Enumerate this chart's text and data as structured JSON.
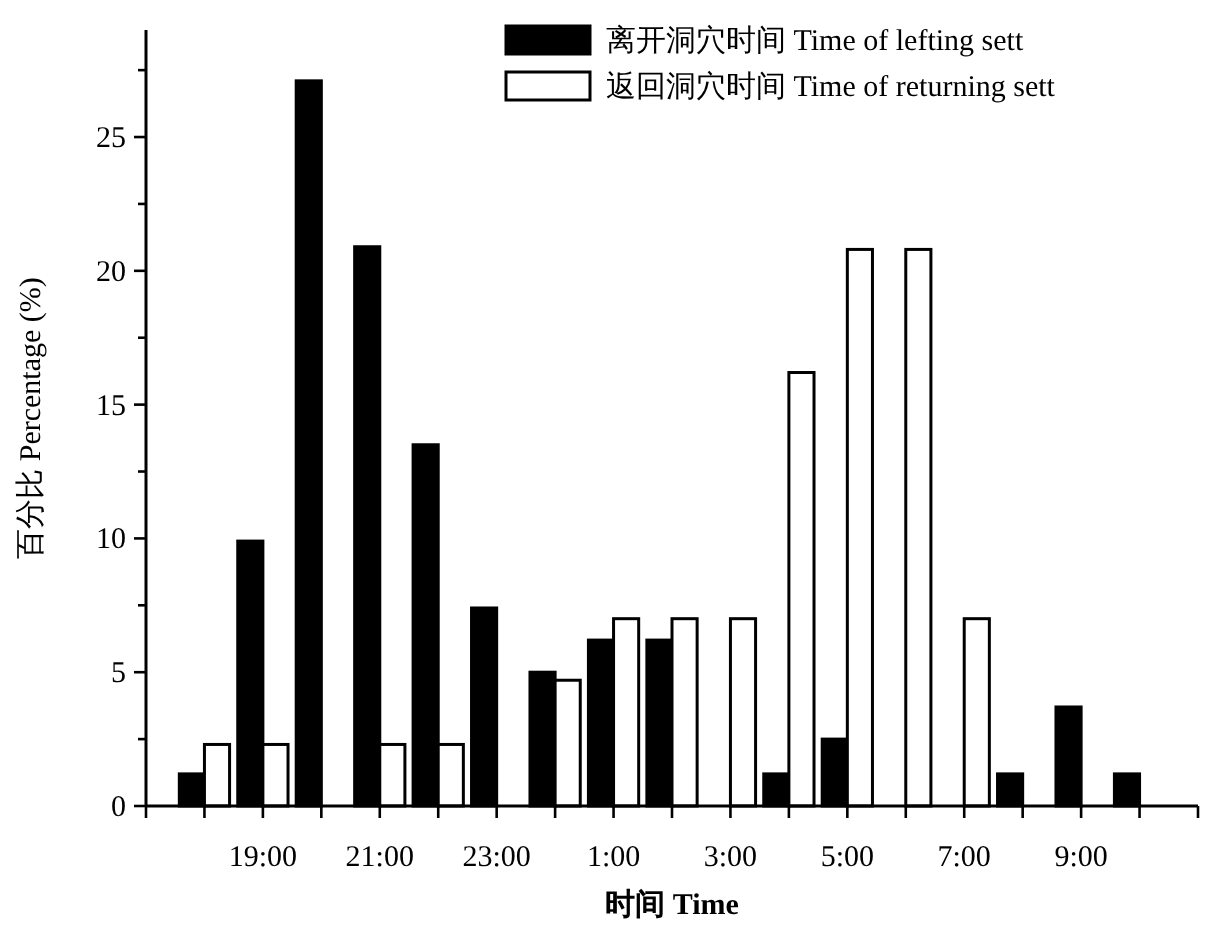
{
  "chart_data": {
    "type": "bar",
    "xlabel": "时间 Time",
    "ylabel": "百分比 Percentage (%)",
    "categories": [
      null,
      "19:00",
      null,
      "21:00",
      null,
      "23:00",
      null,
      "1:00",
      null,
      "3:00",
      null,
      "5:00",
      null,
      "7:00",
      null,
      "9:00",
      null
    ],
    "series": [
      {
        "name": "离开洞穴时间 Time of lefting sett",
        "color": "#000000",
        "values": [
          1.2,
          9.9,
          27.1,
          20.9,
          13.5,
          7.4,
          5.0,
          6.2,
          6.2,
          0,
          1.2,
          2.5,
          0,
          0,
          1.2,
          3.7,
          1.2
        ]
      },
      {
        "name": "返回洞穴时间 Time of returning sett",
        "color": "#ffffff",
        "values": [
          2.3,
          2.3,
          0,
          2.3,
          2.3,
          0,
          4.7,
          7.0,
          7.0,
          7.0,
          16.2,
          20.8,
          20.8,
          7.0,
          0,
          0,
          0
        ]
      }
    ],
    "ylim": [
      0,
      29
    ],
    "yticks": [
      0,
      {
        "value": 2.5,
        "label": null
      },
      5,
      {
        "value": 7.5,
        "label": null
      },
      10,
      {
        "value": 12.5,
        "label": null
      },
      15,
      {
        "value": 17.5,
        "label": null
      },
      20,
      {
        "value": 22.5,
        "label": null
      },
      25,
      {
        "value": 27.5,
        "label": null
      }
    ],
    "grid": false,
    "legend": "top right"
  }
}
